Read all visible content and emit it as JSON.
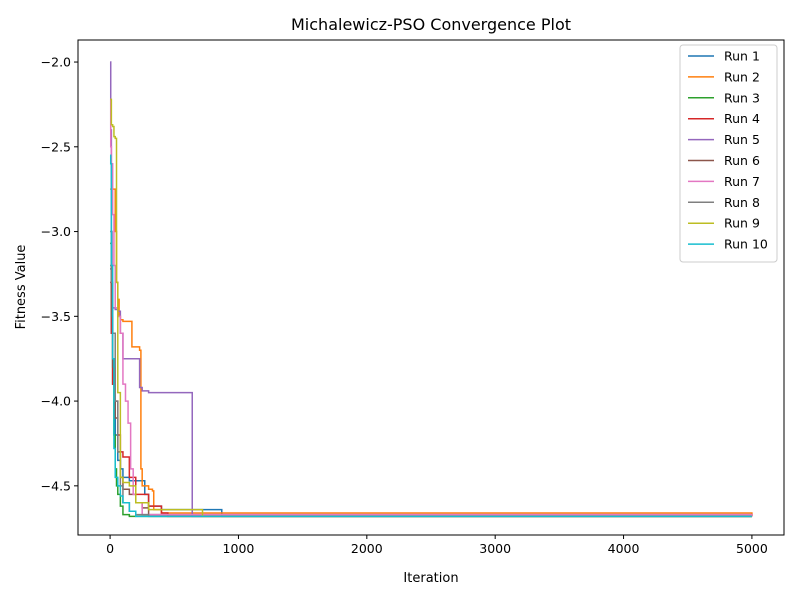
{
  "chart_data": {
    "type": "line",
    "title": "Michalewicz-PSO Convergence Plot",
    "xlabel": "Iteration",
    "ylabel": "Fitness Value",
    "xlim": [
      -250,
      5250
    ],
    "ylim": [
      -4.79,
      -1.87
    ],
    "xticks": [
      0,
      1000,
      2000,
      3000,
      4000,
      5000
    ],
    "xtick_labels": [
      "0",
      "1000",
      "2000",
      "3000",
      "4000",
      "5000"
    ],
    "yticks": [
      -2.0,
      -2.5,
      -3.0,
      -3.5,
      -4.0,
      -4.5
    ],
    "ytick_labels": [
      "−2.0",
      "−2.5",
      "−3.0",
      "−3.5",
      "−4.0",
      "−4.5"
    ],
    "grid": false,
    "legend_position": "top-right",
    "series": [
      {
        "name": "Run 1",
        "color": "#1f77b4",
        "x": [
          0,
          10,
          20,
          40,
          60,
          80,
          100,
          150,
          200,
          250,
          270,
          300,
          400,
          500,
          860,
          870,
          5000
        ],
        "y": [
          -3.22,
          -3.6,
          -3.9,
          -4.2,
          -4.35,
          -4.4,
          -4.45,
          -4.47,
          -4.47,
          -4.47,
          -4.55,
          -4.62,
          -4.64,
          -4.64,
          -4.64,
          -4.68,
          -4.68
        ]
      },
      {
        "name": "Run 2",
        "color": "#ff7f0e",
        "x": [
          0,
          20,
          40,
          50,
          60,
          70,
          80,
          100,
          150,
          160,
          170,
          180,
          230,
          240,
          250,
          300,
          330,
          340,
          400,
          5000
        ],
        "y": [
          -2.75,
          -2.75,
          -3.0,
          -3.3,
          -3.4,
          -3.5,
          -3.52,
          -3.53,
          -3.53,
          -3.53,
          -3.68,
          -3.68,
          -3.7,
          -4.4,
          -4.5,
          -4.52,
          -4.53,
          -4.64,
          -4.66,
          -4.68
        ]
      },
      {
        "name": "Run 3",
        "color": "#2ca02c",
        "x": [
          0,
          10,
          20,
          30,
          40,
          50,
          60,
          80,
          100,
          150,
          200,
          5000
        ],
        "y": [
          -3.07,
          -3.5,
          -3.9,
          -4.2,
          -4.4,
          -4.5,
          -4.55,
          -4.62,
          -4.67,
          -4.68,
          -4.68,
          -4.68
        ]
      },
      {
        "name": "Run 4",
        "color": "#d62728",
        "x": [
          0,
          10,
          20,
          40,
          60,
          80,
          100,
          120,
          150,
          200,
          300,
          400,
          450,
          5000
        ],
        "y": [
          -3.3,
          -3.6,
          -3.9,
          -4.0,
          -4.2,
          -4.3,
          -4.33,
          -4.33,
          -4.45,
          -4.55,
          -4.62,
          -4.66,
          -4.68,
          -4.68
        ]
      },
      {
        "name": "Run 5",
        "color": "#9467bd",
        "x": [
          0,
          5,
          10,
          15,
          20,
          40,
          60,
          80,
          100,
          120,
          160,
          210,
          230,
          250,
          300,
          400,
          500,
          600,
          630,
          640,
          5000
        ],
        "y": [
          -2.0,
          -2.4,
          -3.0,
          -3.3,
          -3.45,
          -3.46,
          -3.47,
          -3.6,
          -3.75,
          -3.75,
          -3.75,
          -3.75,
          -3.92,
          -3.94,
          -3.95,
          -3.95,
          -3.95,
          -3.95,
          -3.95,
          -4.68,
          -4.68
        ]
      },
      {
        "name": "Run 6",
        "color": "#8c564b",
        "x": [
          0,
          10,
          20,
          40,
          60,
          80,
          100,
          150,
          200,
          250,
          300,
          5000
        ],
        "y": [
          -3.2,
          -3.5,
          -3.8,
          -4.1,
          -4.3,
          -4.45,
          -4.52,
          -4.55,
          -4.6,
          -4.63,
          -4.67,
          -4.68
        ]
      },
      {
        "name": "Run 7",
        "color": "#e377c2",
        "x": [
          0,
          5,
          10,
          20,
          30,
          40,
          60,
          80,
          100,
          120,
          140,
          160,
          180,
          200,
          250,
          5000
        ],
        "y": [
          -2.22,
          -2.5,
          -2.6,
          -2.9,
          -3.2,
          -3.45,
          -3.5,
          -3.6,
          -3.9,
          -4.0,
          -4.13,
          -4.4,
          -4.55,
          -4.6,
          -4.67,
          -4.68
        ]
      },
      {
        "name": "Run 8",
        "color": "#7f7f7f",
        "x": [
          0,
          10,
          20,
          40,
          60,
          80,
          100,
          150,
          200,
          300,
          5000
        ],
        "y": [
          -3.0,
          -3.3,
          -3.6,
          -4.0,
          -4.3,
          -4.5,
          -4.6,
          -4.65,
          -4.67,
          -4.68,
          -4.68
        ]
      },
      {
        "name": "Run 9",
        "color": "#bcbd22",
        "x": [
          0,
          10,
          20,
          30,
          40,
          50,
          60,
          80,
          100,
          150,
          200,
          300,
          500,
          700,
          720,
          5000
        ],
        "y": [
          -2.22,
          -2.37,
          -2.38,
          -2.44,
          -2.45,
          -3.3,
          -3.95,
          -4.45,
          -4.48,
          -4.5,
          -4.6,
          -4.64,
          -4.64,
          -4.64,
          -4.68,
          -4.68
        ]
      },
      {
        "name": "Run 10",
        "color": "#17becf",
        "x": [
          0,
          5,
          10,
          20,
          30,
          40,
          50,
          60,
          80,
          100,
          150,
          200,
          5000
        ],
        "y": [
          -2.55,
          -2.6,
          -3.2,
          -3.75,
          -4.28,
          -4.45,
          -4.45,
          -4.5,
          -4.56,
          -4.6,
          -4.65,
          -4.68,
          -4.68
        ]
      }
    ]
  }
}
